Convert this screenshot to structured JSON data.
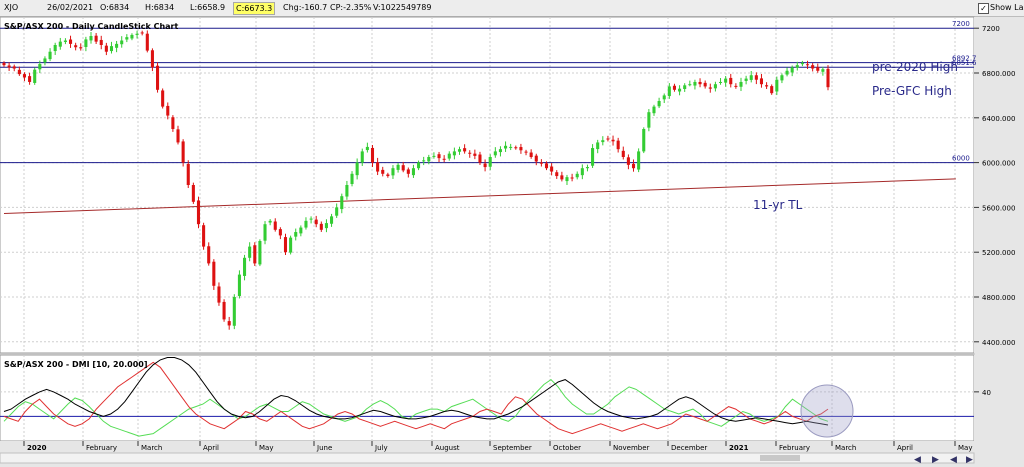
{
  "topbar": {
    "symbol": "XJO",
    "date": "26/02/2021",
    "open": "O:6834",
    "high": "H:6834",
    "low": "L:6658.9",
    "close": "C:6673.3",
    "change": "Chg:-160.7",
    "change_pct": "CP:-2.35%",
    "volume": "V:1022549789",
    "show_last_label": "Show Last",
    "show_last_checked": true
  },
  "colors": {
    "up": "#33cc33",
    "down": "#dd1111",
    "hline": "#1a1a8c",
    "trendline": "#a52a2a",
    "annotation": "#2a2a8a",
    "di_plus": "#55dd55",
    "di_minus": "#e03030",
    "adx": "#000000",
    "dmi_level": "#1a1aaa"
  },
  "x_labels": [
    "2020",
    "February",
    "March",
    "April",
    "May",
    "June",
    "July",
    "August",
    "September",
    "October",
    "November",
    "December",
    "2021",
    "February",
    "March",
    "April",
    "May"
  ],
  "chart_data": [
    {
      "type": "candlestick",
      "title": "S&P/ASX 200 - Daily CandleStick Chart",
      "ylim": [
        4300,
        7300
      ],
      "y_ticks": [
        "7200",
        "6800.000",
        "6400.000",
        "6000.000",
        "5600.000",
        "5200.000",
        "4800.000",
        "4400.000"
      ],
      "hlines": [
        {
          "value": 7200,
          "label": "7200"
        },
        {
          "value": 6892.7,
          "label": "6892.7"
        },
        {
          "value": 6851.6,
          "label": "6851.6"
        },
        {
          "value": 6000,
          "label": "6000"
        }
      ],
      "annotations": [
        "pre-2020 High",
        "Pre-GFC High",
        "11-yr TL"
      ],
      "trendline": {
        "from": [
          "2020-01-02",
          5545
        ],
        "to": [
          "2021-05-05",
          5855
        ]
      },
      "closes": [
        6870,
        6850,
        6840,
        6790,
        6760,
        6720,
        6830,
        6880,
        6930,
        6990,
        7050,
        7080,
        7090,
        7060,
        7030,
        7020,
        7100,
        7130,
        7080,
        7050,
        6990,
        7040,
        7060,
        7090,
        7120,
        7140,
        7150,
        7160,
        7000,
        6850,
        6650,
        6500,
        6420,
        6300,
        6180,
        6000,
        5800,
        5650,
        5450,
        5250,
        5100,
        4900,
        4750,
        4600,
        4546,
        4800,
        5000,
        5150,
        5250,
        5100,
        5300,
        5450,
        5480,
        5400,
        5350,
        5200,
        5330,
        5380,
        5420,
        5480,
        5500,
        5450,
        5400,
        5460,
        5520,
        5600,
        5700,
        5800,
        5900,
        6000,
        6100,
        6140,
        6000,
        5920,
        5900,
        5880,
        5950,
        5980,
        5930,
        5900,
        5950,
        6000,
        6020,
        6050,
        6060,
        6040,
        6030,
        6080,
        6100,
        6120,
        6100,
        6080,
        6060,
        6000,
        5960,
        6050,
        6100,
        6120,
        6150,
        6140,
        6130,
        6110,
        6090,
        6050,
        6010,
        5990,
        5950,
        5920,
        5880,
        5850,
        5870,
        5860,
        5900,
        5950,
        5960,
        6130,
        6180,
        6200,
        6210,
        6190,
        6120,
        6050,
        5980,
        5950,
        6100,
        6300,
        6450,
        6500,
        6550,
        6600,
        6680,
        6650,
        6660,
        6690,
        6700,
        6720,
        6700,
        6680,
        6660,
        6700,
        6720,
        6750,
        6700,
        6680,
        6720,
        6750,
        6780,
        6740,
        6700,
        6680,
        6620,
        6740,
        6780,
        6820,
        6850,
        6870,
        6890,
        6870,
        6840,
        6820,
        6834,
        6673.3
      ]
    },
    {
      "type": "line",
      "title": "S&P/ASX 200 - DMI [10, 20.000]",
      "ylim": [
        0,
        70
      ],
      "y_ticks": [
        "40"
      ],
      "level": 20,
      "series": [
        {
          "key": "di_plus",
          "values": [
            16,
            22,
            28,
            32,
            30,
            26,
            22,
            18,
            24,
            30,
            35,
            33,
            28,
            22,
            16,
            12,
            10,
            8,
            6,
            4,
            5,
            6,
            10,
            14,
            18,
            22,
            26,
            28,
            30,
            34,
            30,
            26,
            22,
            18,
            20,
            24,
            28,
            30,
            27,
            24,
            24,
            28,
            32,
            30,
            26,
            22,
            20,
            18,
            16,
            18,
            20,
            26,
            30,
            33,
            30,
            26,
            20,
            18,
            22,
            24,
            26,
            26,
            24,
            28,
            30,
            32,
            34,
            30,
            26,
            22,
            18,
            16,
            20,
            28,
            34,
            40,
            46,
            50,
            44,
            36,
            30,
            26,
            22,
            22,
            26,
            30,
            36,
            40,
            44,
            42,
            38,
            34,
            30,
            26,
            24,
            22,
            24,
            26,
            22,
            16,
            14,
            12,
            16,
            20,
            24,
            22,
            18,
            16,
            18,
            20,
            28,
            34,
            30,
            26,
            22,
            18,
            16
          ]
        },
        {
          "key": "di_minus",
          "values": [
            20,
            18,
            16,
            24,
            30,
            34,
            28,
            22,
            18,
            14,
            12,
            14,
            18,
            26,
            32,
            38,
            44,
            48,
            52,
            56,
            60,
            64,
            60,
            52,
            44,
            36,
            28,
            22,
            18,
            14,
            12,
            10,
            14,
            18,
            24,
            22,
            18,
            16,
            20,
            24,
            20,
            16,
            12,
            10,
            12,
            14,
            18,
            22,
            24,
            22,
            18,
            16,
            14,
            12,
            14,
            16,
            14,
            12,
            10,
            12,
            14,
            12,
            10,
            14,
            16,
            18,
            20,
            24,
            26,
            24,
            22,
            30,
            36,
            34,
            28,
            22,
            18,
            14,
            10,
            8,
            6,
            8,
            10,
            12,
            14,
            12,
            10,
            8,
            10,
            12,
            14,
            12,
            10,
            12,
            14,
            18,
            22,
            20,
            18,
            16,
            20,
            24,
            28,
            26,
            22,
            18,
            16,
            14,
            16,
            20,
            24,
            20,
            18,
            16,
            20,
            22,
            26
          ]
        },
        {
          "key": "adx",
          "values": [
            24,
            26,
            30,
            34,
            37,
            40,
            42,
            40,
            37,
            34,
            30,
            27,
            24,
            22,
            20,
            22,
            26,
            32,
            40,
            48,
            56,
            62,
            66,
            68,
            68,
            66,
            62,
            56,
            48,
            40,
            32,
            26,
            22,
            20,
            19,
            20,
            24,
            29,
            34,
            37,
            36,
            33,
            29,
            25,
            22,
            20,
            19,
            18,
            18,
            19,
            21,
            23,
            25,
            24,
            22,
            20,
            19,
            18,
            18,
            19,
            20,
            22,
            24,
            25,
            24,
            22,
            20,
            19,
            18,
            18,
            20,
            22,
            25,
            28,
            32,
            36,
            40,
            44,
            48,
            50,
            46,
            41,
            36,
            31,
            27,
            24,
            22,
            20,
            19,
            18,
            19,
            20,
            22,
            26,
            30,
            34,
            36,
            34,
            30,
            26,
            22,
            19,
            17,
            16,
            17,
            18,
            19,
            18,
            17,
            16,
            15,
            14,
            15,
            16,
            15,
            14,
            13
          ]
        }
      ]
    }
  ]
}
